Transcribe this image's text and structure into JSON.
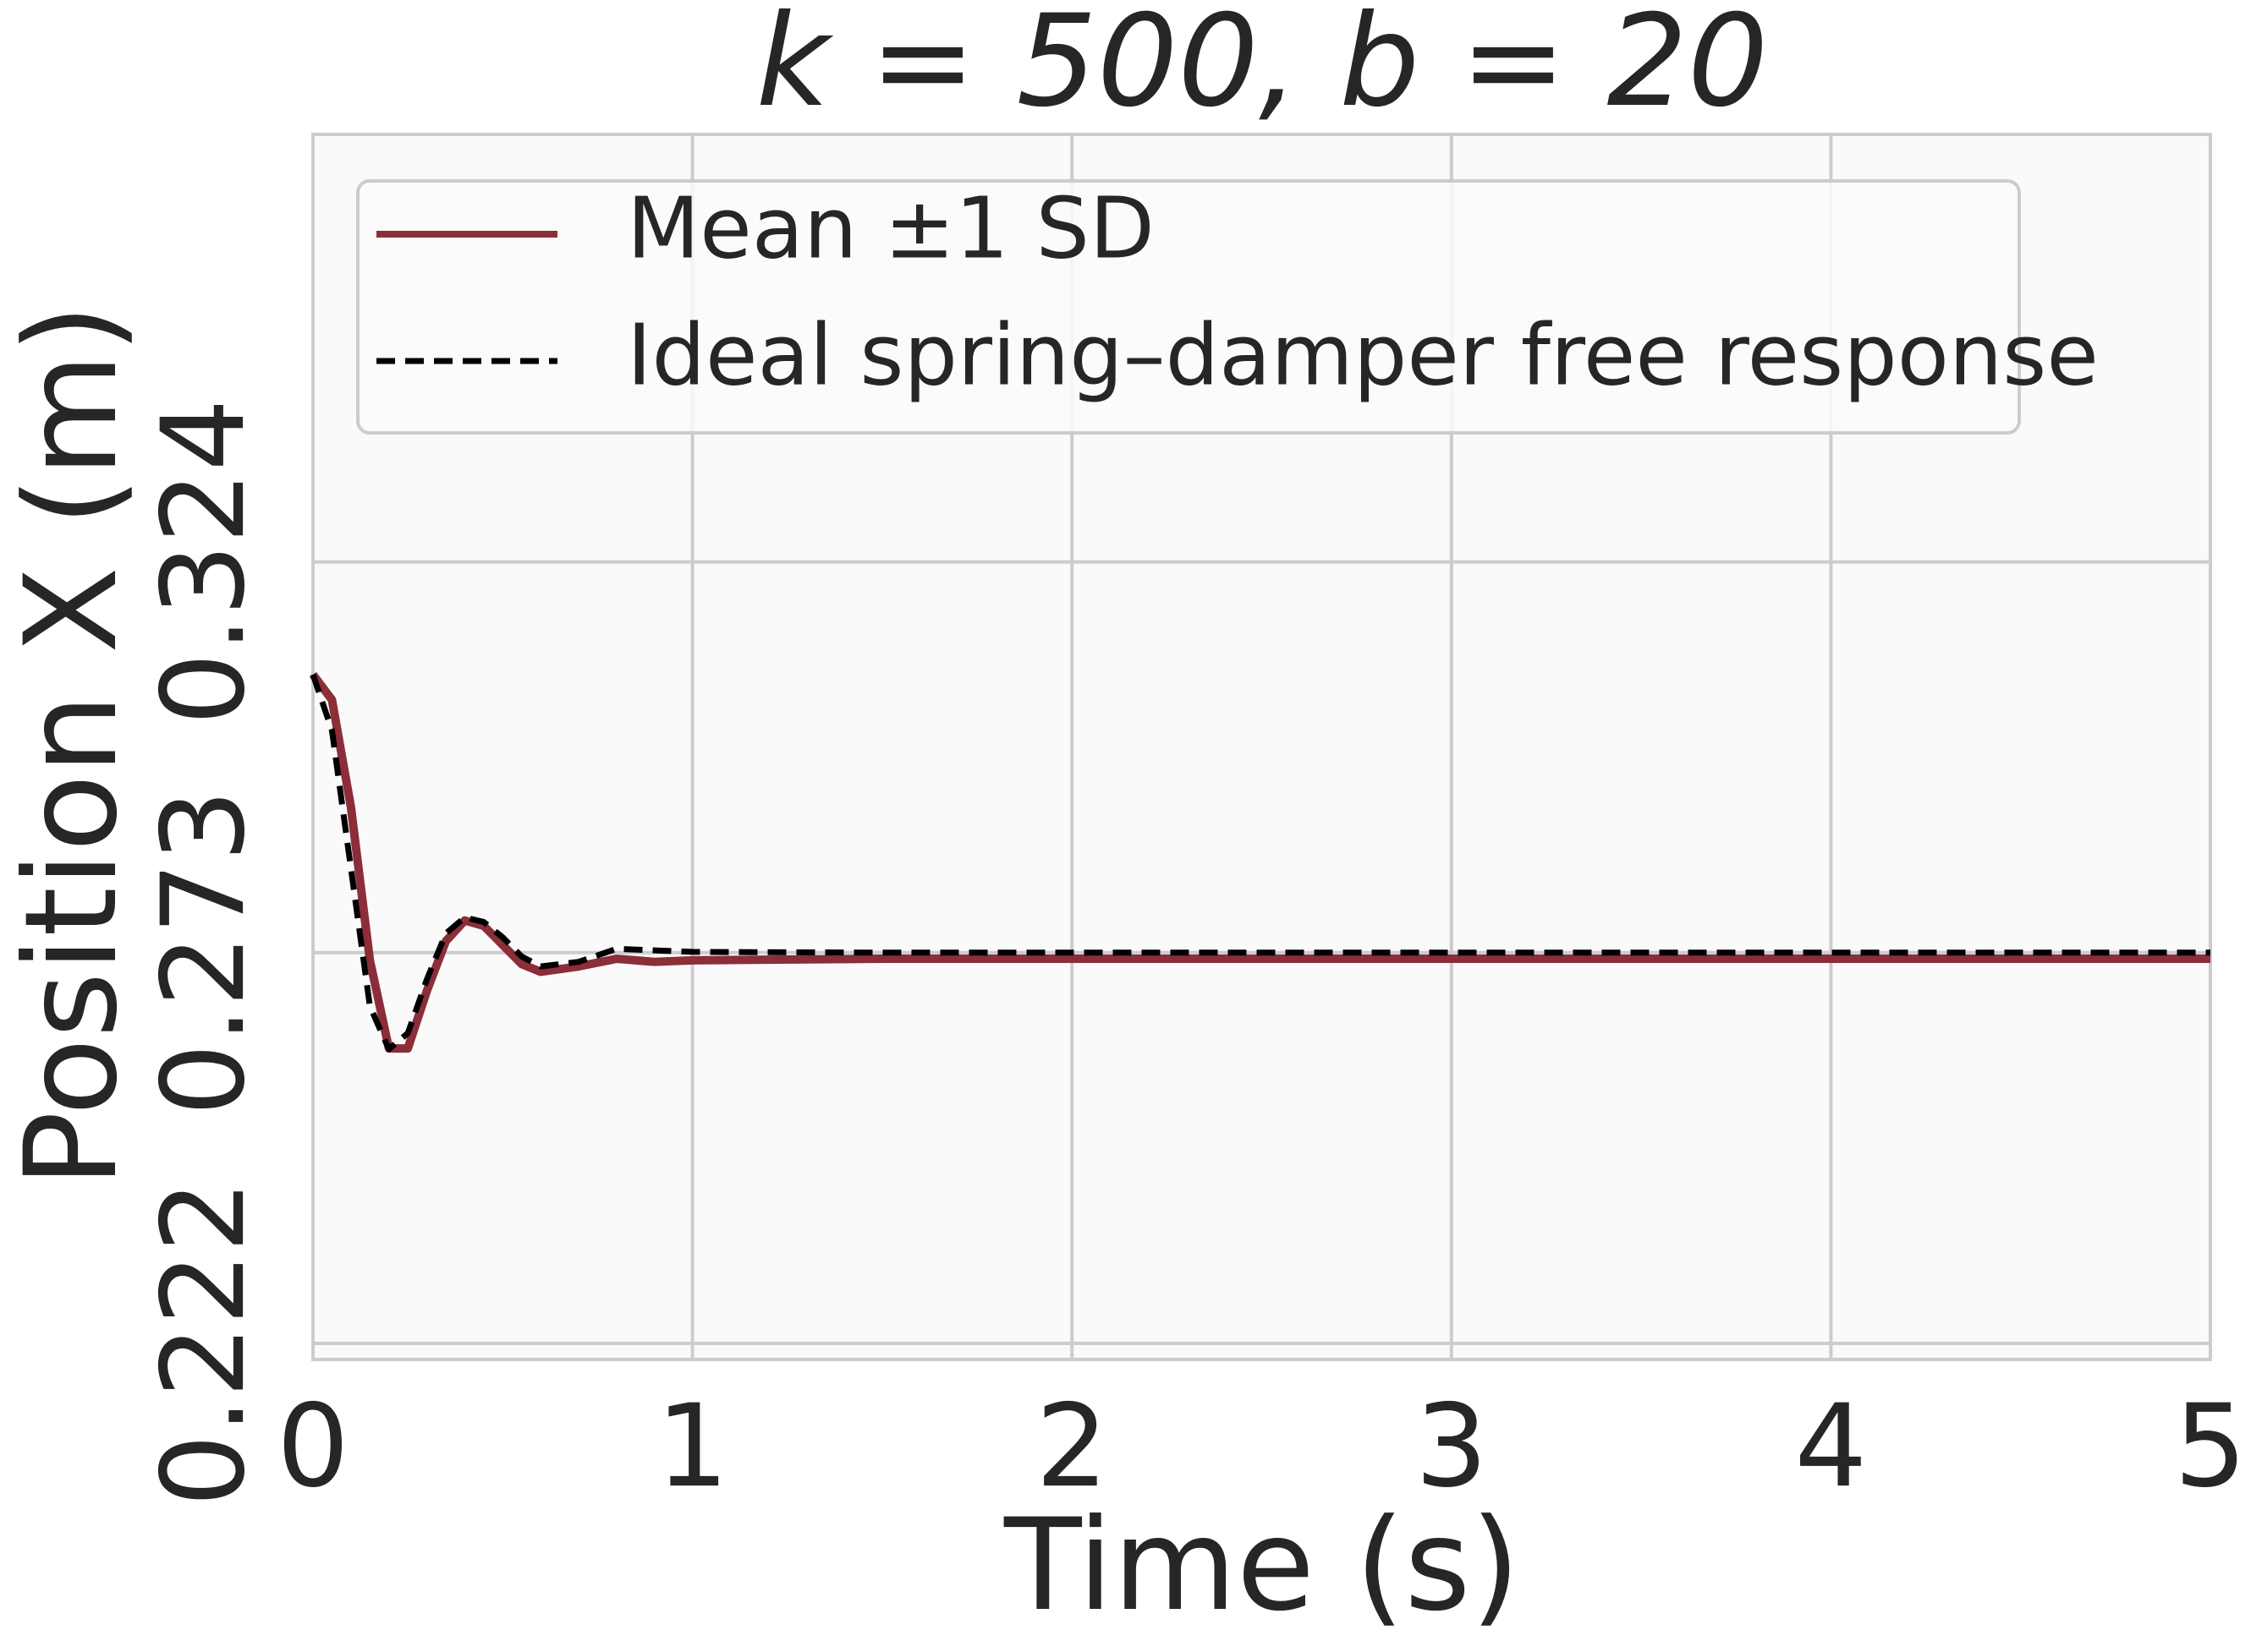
{
  "chart_data": {
    "type": "line",
    "title": "k = 500, b = 20",
    "x_label": "Time (s)",
    "y_label": "Position X (m)",
    "x": [
      0,
      0.05,
      0.1,
      0.15,
      0.2,
      0.25,
      0.3,
      0.35,
      0.4,
      0.45,
      0.5,
      0.55,
      0.6,
      0.7,
      0.8,
      0.9,
      1.0,
      1.5,
      2,
      3,
      4,
      5
    ],
    "series": [
      {
        "name": "Mean ±1 SD",
        "color": "#8b2e3a",
        "dash": false,
        "values": [
          0.3093,
          0.306,
          0.292,
          0.272,
          0.2605,
          0.2605,
          0.268,
          0.2745,
          0.2772,
          0.2765,
          0.274,
          0.2715,
          0.2705,
          0.2712,
          0.2722,
          0.2718,
          0.272,
          0.2722,
          0.2722,
          0.2722,
          0.2722,
          0.2722
        ]
      },
      {
        "name": "Ideal spring–damper free response",
        "color": "#000000",
        "dash": true,
        "values": [
          0.3093,
          0.302,
          0.284,
          0.266,
          0.2604,
          0.2625,
          0.2695,
          0.2755,
          0.2776,
          0.277,
          0.275,
          0.2725,
          0.2712,
          0.2718,
          0.2735,
          0.2733,
          0.2731,
          0.273,
          0.273,
          0.273,
          0.273,
          0.273
        ]
      }
    ],
    "xlim": [
      0,
      5
    ],
    "xticks": [
      0,
      1,
      2,
      3,
      4,
      5
    ],
    "ylim": [
      0.2199,
      0.3798
    ],
    "yticks": [
      0.222,
      0.273,
      0.324
    ],
    "grid": true,
    "legend": "upper left"
  }
}
